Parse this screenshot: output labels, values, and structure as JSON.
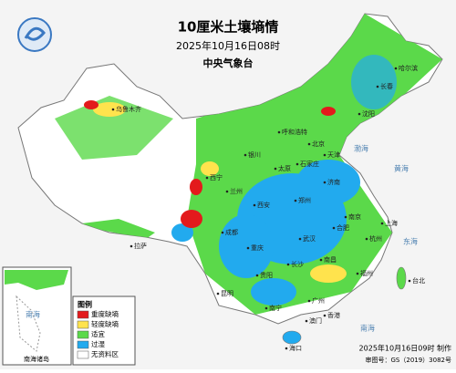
{
  "header": {
    "title": "10厘米土壤墒情",
    "time": "2025年10月16日08时",
    "agency": "中央气象台"
  },
  "legend": {
    "title": "图例",
    "items": [
      {
        "label": "重度缺墒",
        "color": "#e31a1c"
      },
      {
        "label": "轻度缺墒",
        "color": "#ffe34d"
      },
      {
        "label": "适宜",
        "color": "#5bd94a"
      },
      {
        "label": "过湿",
        "color": "#22aaee"
      },
      {
        "label": "无资料区",
        "color": "#ffffff"
      }
    ]
  },
  "seas": [
    "渤海",
    "黄海",
    "东海",
    "南海"
  ],
  "cities": [
    "北京",
    "天津",
    "石家庄",
    "太原",
    "济南",
    "郑州",
    "西安",
    "南京",
    "上海",
    "合肥",
    "杭州",
    "武汉",
    "南昌",
    "长沙",
    "福州",
    "台北",
    "广州",
    "香港",
    "澳门",
    "南宁",
    "海口",
    "贵阳",
    "重庆",
    "成都",
    "昆明",
    "拉萨",
    "西宁",
    "兰州",
    "银川",
    "呼和浩特",
    "沈阳",
    "长春",
    "哈尔滨",
    "乌鲁木齐"
  ],
  "inset": {
    "label": "南海诸岛",
    "sea": "南海"
  },
  "footer": {
    "made": "2025年10月16日09时 制作",
    "approval": "审图号：GS（2019）3082号"
  }
}
